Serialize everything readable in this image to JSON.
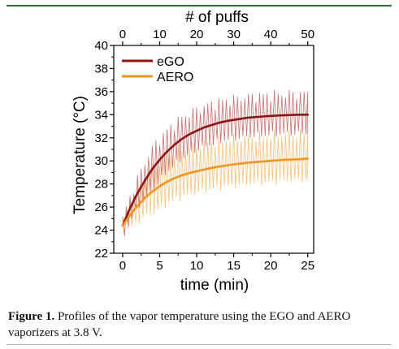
{
  "figure": {
    "caption_label": "Figure 1.",
    "caption_text": " Profiles of the vapor temperature using the EGO and AERO vaporizers at 3.8 V."
  },
  "chart_data": {
    "type": "line",
    "xlabel": "time (min)",
    "ylabel": "Temperature (°C)",
    "top_axis_label": "# of puffs",
    "xlim": [
      -1.2,
      25.8
    ],
    "ylim": [
      22,
      40
    ],
    "xticks": [
      0,
      5,
      10,
      15,
      20,
      25
    ],
    "yticks": [
      22,
      24,
      26,
      28,
      30,
      32,
      34,
      36,
      38,
      40
    ],
    "top_ticks": [
      0,
      10,
      20,
      30,
      40,
      50
    ],
    "top_tick_positions_min": [
      0,
      5,
      10,
      15,
      20,
      25
    ],
    "legend_position": "top-left",
    "series": [
      {
        "name": "eGO",
        "color": "#8b1414",
        "raw_color": "#c87070",
        "x": [
          0,
          1,
          2,
          3,
          4,
          5,
          6,
          7,
          8,
          9,
          10,
          11,
          12,
          13,
          14,
          15,
          16,
          17,
          18,
          19,
          20,
          21,
          22,
          23,
          24,
          25
        ],
        "values": [
          24.4,
          25.9,
          27.2,
          28.3,
          29.3,
          30.1,
          30.8,
          31.4,
          31.9,
          32.3,
          32.6,
          32.9,
          33.1,
          33.3,
          33.45,
          33.55,
          33.65,
          33.75,
          33.8,
          33.85,
          33.9,
          33.93,
          33.96,
          33.98,
          34.0,
          34.0
        ],
        "raw_peak_offset": 1.8,
        "raw_trough_offset": 1.6,
        "raw_max": 36.6
      },
      {
        "name": "AERO",
        "color": "#f39420",
        "raw_color": "#f7c27a",
        "x": [
          0,
          1,
          2,
          3,
          4,
          5,
          6,
          7,
          8,
          9,
          10,
          11,
          12,
          13,
          14,
          15,
          16,
          17,
          18,
          19,
          20,
          21,
          22,
          23,
          24,
          25
        ],
        "values": [
          24.4,
          25.3,
          26.1,
          26.8,
          27.35,
          27.8,
          28.2,
          28.5,
          28.75,
          28.95,
          29.1,
          29.25,
          29.4,
          29.5,
          29.6,
          29.7,
          29.78,
          29.85,
          29.9,
          29.95,
          30.0,
          30.05,
          30.1,
          30.12,
          30.15,
          30.2
        ],
        "raw_peak_offset": 2.2,
        "raw_trough_offset": 1.8,
        "raw_min": 23.0
      }
    ]
  }
}
